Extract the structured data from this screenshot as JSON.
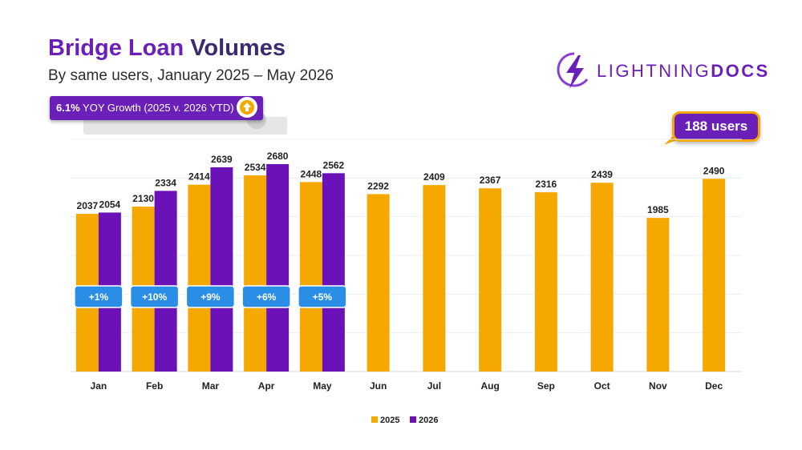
{
  "header": {
    "title_part1": "Bridge Loan",
    "title_part2": "Volumes",
    "subtitle": "By same users, January 2025 – May 2026"
  },
  "logo": {
    "text_light": "LIGHTNING",
    "text_bold": "DOCS",
    "icon": "lightning-bolt-icon"
  },
  "yoy_badge": {
    "value": "6.1%",
    "label": "YOY Growth (2025 v. 2026 YTD)",
    "icon": "up-arrow-icon"
  },
  "users_badge": {
    "label": "188 users"
  },
  "colors": {
    "series_2025": "#f5a800",
    "series_2026": "#6a12b8",
    "pct_badge": "#2a8ee6",
    "brand": "#6a1fb8"
  },
  "chart_data": {
    "type": "bar",
    "categories": [
      "Jan",
      "Feb",
      "Mar",
      "Apr",
      "May",
      "Jun",
      "Jul",
      "Aug",
      "Sep",
      "Oct",
      "Nov",
      "Dec"
    ],
    "series": [
      {
        "name": "2025",
        "values": [
          2037,
          2130,
          2414,
          2534,
          2448,
          2292,
          2409,
          2367,
          2316,
          2439,
          1985,
          2490
        ]
      },
      {
        "name": "2026",
        "values": [
          2054,
          2334,
          2639,
          2680,
          2562,
          null,
          null,
          null,
          null,
          null,
          null,
          null
        ]
      }
    ],
    "change_labels": [
      "+1%",
      "+10%",
      "+9%",
      "+6%",
      "+5%"
    ],
    "ylim": [
      0,
      3000
    ],
    "grid": true,
    "legend_position": "bottom-center"
  }
}
